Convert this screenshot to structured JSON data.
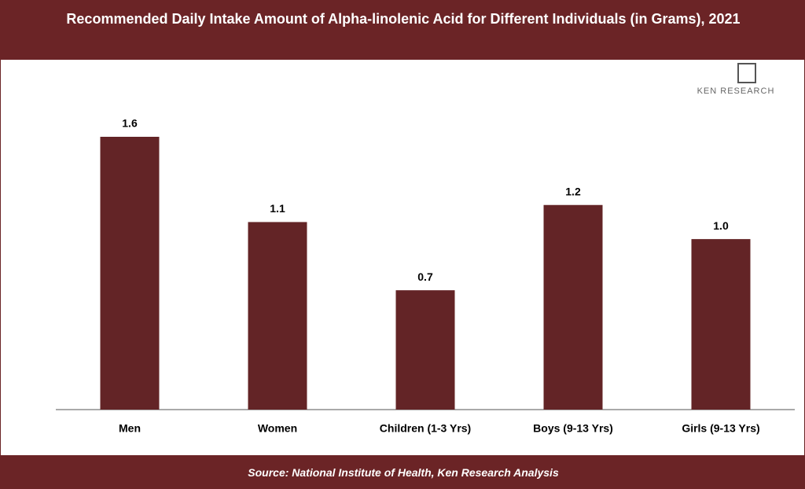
{
  "chart_data": {
    "type": "bar",
    "title": "Recommended Daily Intake Amount of Alpha-linolenic Acid for Different Individuals (in Grams), 2021",
    "categories": [
      "Men",
      "Women",
      "Children (1-3 Yrs)",
      "Boys (9-13 Yrs)",
      "Girls (9-13 Yrs)"
    ],
    "values": [
      1.6,
      1.1,
      0.7,
      1.2,
      1.0
    ],
    "value_labels": [
      "1.6",
      "1.1",
      "0.7",
      "1.2",
      "1.0"
    ],
    "color": "#632426",
    "source": "Source: National Institute of Health, Ken Research Analysis",
    "logo": "KEN RESEARCH"
  }
}
